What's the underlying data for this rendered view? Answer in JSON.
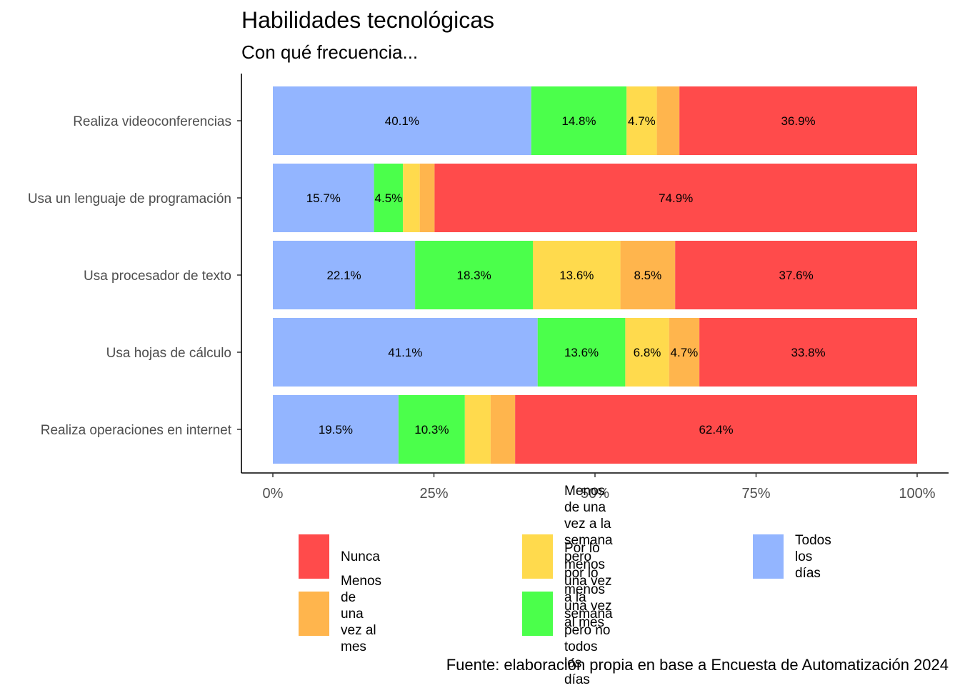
{
  "chart_data": {
    "type": "bar",
    "orientation": "horizontal",
    "stacked": "percent",
    "title": "Habilidades tecnológicas",
    "subtitle": "Con qué frecuencia...",
    "caption": "Fuente: elaboración propia en base a Encuesta de Automatización 2024",
    "categories": [
      "Realiza videoconferencias",
      "Usa un lenguaje de programación",
      "Usa procesador de texto",
      "Usa hojas de cálculo",
      "Realiza operaciones en internet"
    ],
    "series": [
      {
        "name": "Todos los días",
        "color": "#93b5ff",
        "values": [
          40.1,
          15.7,
          22.1,
          41.1,
          19.5
        ],
        "labels": [
          "40.1%",
          "15.7%",
          "22.1%",
          "41.1%",
          "19.5%"
        ]
      },
      {
        "name": "Por lo menos una vez a la semana pero no todos los días",
        "color": "#4bff4b",
        "values": [
          14.8,
          4.5,
          18.3,
          13.6,
          10.3
        ],
        "labels": [
          "14.8%",
          "4.5%",
          "18.3%",
          "13.6%",
          "10.3%"
        ]
      },
      {
        "name": "Menos de una vez a la semana pero por lo menos una vez al mes",
        "color": "#ffda4d",
        "values": [
          4.7,
          2.6,
          13.6,
          6.8,
          4.0
        ],
        "labels": [
          "4.7%",
          "",
          "13.6%",
          "6.8%",
          ""
        ]
      },
      {
        "name": "Menos de una vez al mes",
        "color": "#ffb54d",
        "values": [
          3.5,
          2.3,
          8.5,
          4.7,
          3.8
        ],
        "labels": [
          "",
          "",
          "8.5%",
          "4.7%",
          ""
        ]
      },
      {
        "name": "Nunca",
        "color": "#ff4b4b",
        "values": [
          36.9,
          74.9,
          37.6,
          33.8,
          62.4
        ],
        "labels": [
          "36.9%",
          "74.9%",
          "37.6%",
          "33.8%",
          "62.4%"
        ]
      }
    ],
    "xlim": [
      0,
      100
    ],
    "xticks": [
      "0%",
      "25%",
      "50%",
      "75%",
      "100%"
    ],
    "legend": {
      "position": "bottom",
      "items": [
        {
          "name": "Nunca",
          "color": "#ff4b4b",
          "lines": [
            "Nunca"
          ]
        },
        {
          "name": "Menos de una vez al mes",
          "color": "#ffb54d",
          "lines": [
            "Menos de una vez al mes"
          ]
        },
        {
          "name": "Menos de una vez a la semana pero por lo menos una vez al mes",
          "color": "#ffda4d",
          "lines": [
            "Menos de una vez a la",
            "semana pero por lo menos",
            "una vez al mes"
          ]
        },
        {
          "name": "Por lo menos una vez a la semana pero no todos los días",
          "color": "#4bff4b",
          "lines": [
            "Por lo menos una vez a la",
            "semana pero no todos los",
            "días"
          ]
        },
        {
          "name": "Todos los días",
          "color": "#93b5ff",
          "lines": [
            "Todos los días"
          ]
        }
      ]
    }
  }
}
